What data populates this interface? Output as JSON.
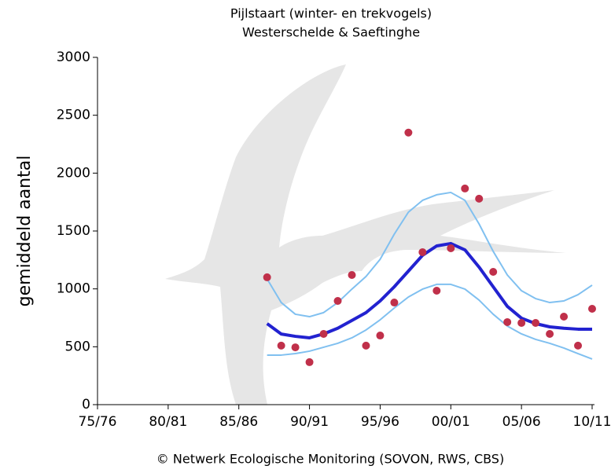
{
  "chart_data": {
    "type": "line",
    "title": "Pijlstaart (winter- en trekvogels)",
    "subtitle": "Westerschelde & Saeftinghe",
    "y_label": "gemiddeld aantal",
    "footer": "©  Netwerk Ecologische Monitoring (SOVON, RWS, CBS)",
    "x": [
      1987,
      1988,
      1989,
      1990,
      1991,
      1992,
      1993,
      1994,
      1995,
      1996,
      1997,
      1998,
      1999,
      2000,
      2001,
      2002,
      2003,
      2004,
      2005,
      2006,
      2007,
      2008,
      2009,
      2010
    ],
    "series": [
      {
        "name": "upper",
        "style": "line",
        "color": "#80c0f0",
        "width": 2,
        "values": [
          1086,
          882,
          781,
          760,
          795,
          882,
          998,
          1107,
          1256,
          1473,
          1663,
          1765,
          1813,
          1833,
          1765,
          1561,
          1324,
          1120,
          984,
          916,
          882,
          896,
          950,
          1032
        ]
      },
      {
        "name": "lower",
        "style": "line",
        "color": "#80c0f0",
        "width": 2,
        "values": [
          428,
          428,
          441,
          462,
          496,
          530,
          577,
          645,
          733,
          835,
          930,
          998,
          1039,
          1039,
          998,
          903,
          781,
          679,
          611,
          564,
          530,
          489,
          441,
          394
        ]
      },
      {
        "name": "trend",
        "style": "line",
        "color": "#2222d0",
        "width": 4,
        "values": [
          700,
          610,
          590,
          577,
          611,
          660,
          727,
          795,
          896,
          1018,
          1154,
          1290,
          1371,
          1392,
          1337,
          1188,
          1018,
          849,
          747,
          700,
          672,
          660,
          652,
          652
        ]
      },
      {
        "name": "counts",
        "style": "points",
        "color": "#c0304a",
        "values": [
          1100,
          510,
          495,
          367,
          611,
          896,
          1120,
          510,
          597,
          882,
          2350,
          1317,
          984,
          1351,
          1867,
          1779,
          1147,
          713,
          706,
          706,
          611,
          760,
          510,
          828
        ]
      }
    ],
    "xlim": [
      1975,
      2010
    ],
    "xticks": [
      {
        "value": 1975,
        "label": "75/76"
      },
      {
        "value": 1980,
        "label": "80/81"
      },
      {
        "value": 1985,
        "label": "85/86"
      },
      {
        "value": 1990,
        "label": "90/91"
      },
      {
        "value": 1995,
        "label": "95/96"
      },
      {
        "value": 2000,
        "label": "00/01"
      },
      {
        "value": 2005,
        "label": "05/06"
      },
      {
        "value": 2010,
        "label": "10/11"
      }
    ],
    "ylim": [
      0,
      3000
    ],
    "yticks": [
      0,
      500,
      1000,
      1500,
      2000,
      2500,
      3000
    ]
  }
}
